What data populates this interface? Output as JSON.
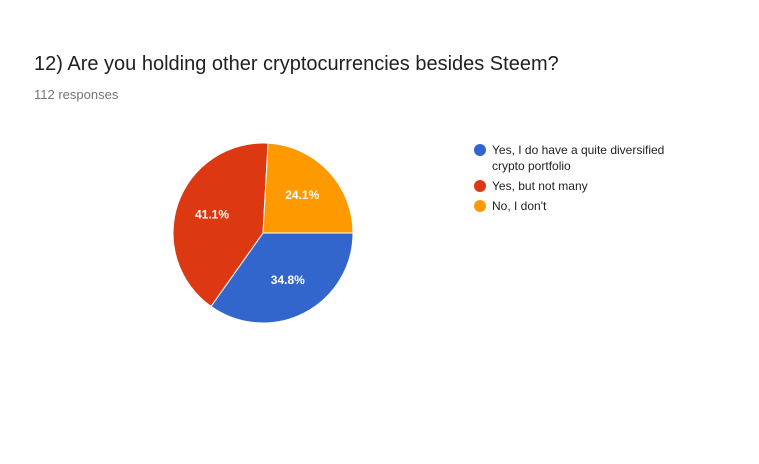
{
  "chart_data": {
    "type": "pie",
    "title": "12) Are you holding other cryptocurrencies besides Steem?",
    "subtitle": "112 responses",
    "categories": [
      "Yes, I do have a quite diversified crypto portfolio",
      "Yes, but not many",
      "No, I don't"
    ],
    "values": [
      34.8,
      41.1,
      24.1
    ],
    "value_labels": [
      "34.8%",
      "41.1%",
      "24.1%"
    ],
    "colors": [
      "#3366cc",
      "#dc3912",
      "#ff9900"
    ],
    "legend": "right"
  }
}
